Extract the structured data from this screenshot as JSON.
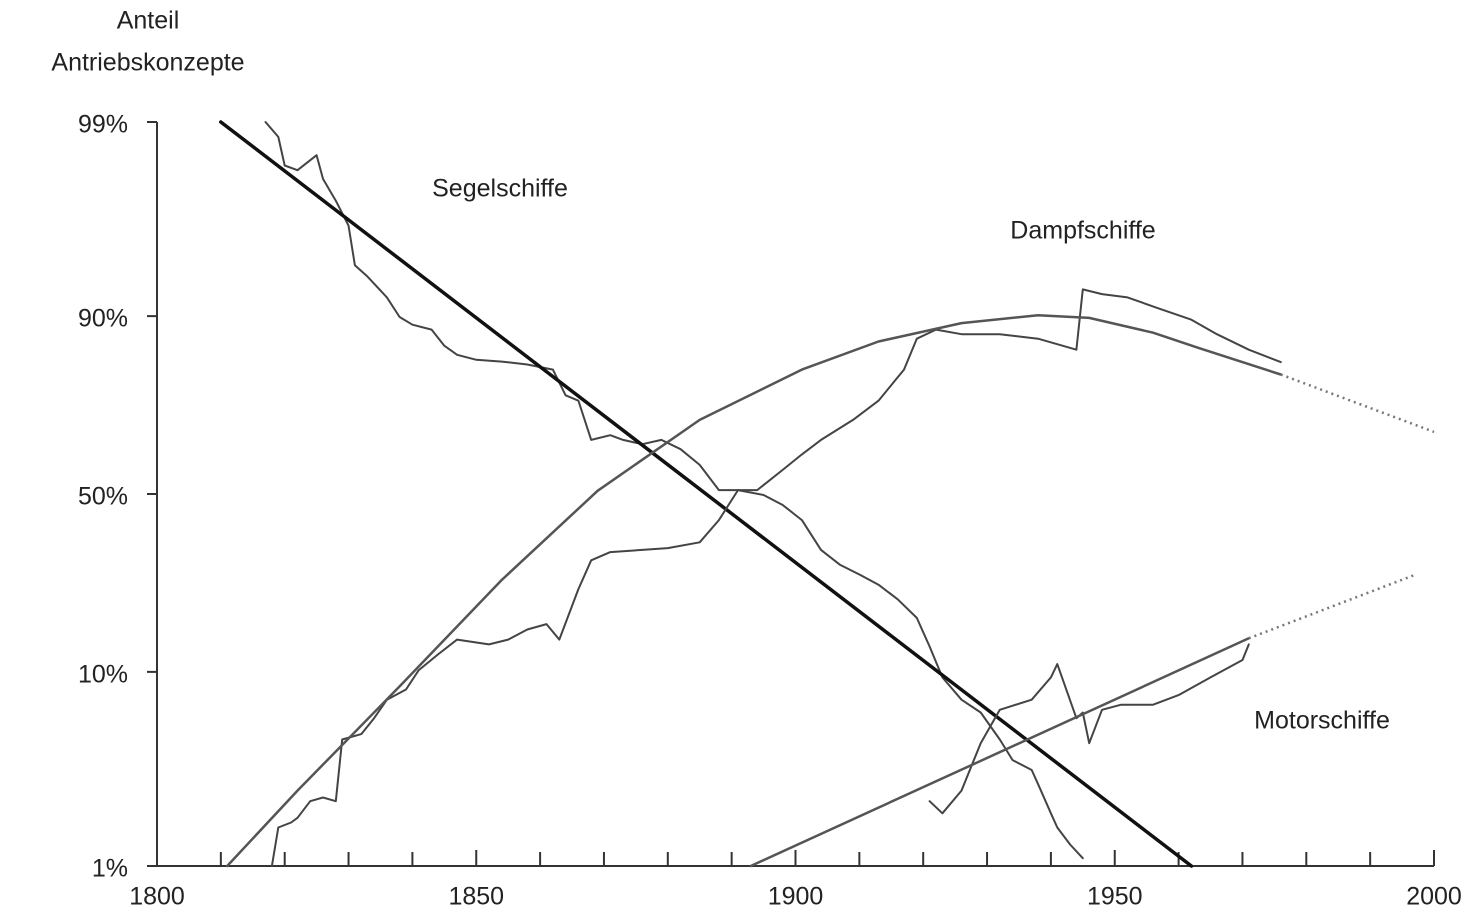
{
  "chart_data": {
    "type": "line",
    "yscale": "logit",
    "ylabel": [
      "Anteil",
      "Antriebskonzepte"
    ],
    "xlim": [
      1800,
      2000
    ],
    "xticks": [
      1800,
      1850,
      1900,
      1950,
      2000
    ],
    "xminor_ticks": [
      1810,
      1820,
      1830,
      1840,
      1860,
      1870,
      1880,
      1890,
      1910,
      1920,
      1930,
      1940,
      1960,
      1970,
      1980,
      1990
    ],
    "ylim": [
      1,
      99
    ],
    "yticks": [
      {
        "value": 1,
        "label": "1%"
      },
      {
        "value": 10,
        "label": "10%"
      },
      {
        "value": 50,
        "label": "50%"
      },
      {
        "value": 90,
        "label": "90%"
      },
      {
        "value": 99,
        "label": "99%"
      }
    ],
    "grid": false,
    "series": [
      {
        "name": "Segelschiffe",
        "color": "#444444",
        "style": "solid",
        "width": 2,
        "x": [
          1817,
          1819,
          1820,
          1822,
          1825,
          1826,
          1828,
          1830,
          1831,
          1833,
          1836,
          1838,
          1840,
          1843,
          1845,
          1847,
          1850,
          1854,
          1858,
          1862,
          1864,
          1866,
          1868,
          1871,
          1873,
          1876,
          1879,
          1882,
          1885,
          1888,
          1891,
          1895,
          1898,
          1901,
          1904,
          1907,
          1910,
          1913,
          1916,
          1919,
          1921,
          1923,
          1926,
          1929,
          1932,
          1934,
          1937,
          1938,
          1940,
          1941,
          1943,
          1945
        ],
        "values": [
          99,
          98.8,
          98.3,
          98.2,
          98.5,
          98,
          97.4,
          96.5,
          94.4,
          93.6,
          91.9,
          89.9,
          89,
          88.4,
          86.2,
          84.8,
          84,
          83.7,
          83.2,
          82.3,
          77.2,
          76,
          66.1,
          67.4,
          66.1,
          64.9,
          66.1,
          63.5,
          58.9,
          51.2,
          51.2,
          49.7,
          46.6,
          42,
          33.4,
          29.4,
          27,
          24.6,
          21.4,
          17.8,
          13.2,
          9.4,
          7.3,
          6.3,
          4.6,
          3.6,
          3.2,
          2.7,
          1.9,
          1.6,
          1.3,
          1.1
        ]
      },
      {
        "color": "#111111",
        "style": "solid",
        "width": 3.5,
        "x": [
          1810,
          1962
        ],
        "values": [
          99,
          1
        ]
      },
      {
        "name": "Dampfschiffe",
        "color": "#444444",
        "style": "solid",
        "width": 2,
        "x": [
          1818,
          1819,
          1821,
          1822,
          1824,
          1826,
          1828,
          1829,
          1832,
          1834,
          1836,
          1839,
          1841,
          1844,
          1847,
          1852,
          1855,
          1858,
          1861,
          1863,
          1866,
          1868,
          1871,
          1876,
          1880,
          1885,
          1888,
          1891,
          1894,
          1898,
          1901,
          1904,
          1909,
          1913,
          1917,
          1919,
          1922,
          1926,
          1932,
          1938,
          1944,
          1945,
          1948,
          1952,
          1957,
          1962,
          1966,
          1971,
          1976
        ],
        "values": [
          1,
          1.6,
          1.7,
          1.8,
          2.2,
          2.3,
          2.2,
          4.6,
          4.9,
          5.9,
          7.3,
          8.2,
          10.2,
          12.1,
          14.2,
          13.5,
          14.2,
          15.8,
          16.7,
          14.2,
          23.6,
          30.6,
          32.8,
          33.4,
          33.9,
          35.5,
          42,
          51.2,
          51.2,
          57.4,
          62,
          66.1,
          71.4,
          76,
          82.3,
          87.2,
          88.4,
          87.8,
          87.8,
          87.2,
          85.6,
          92.6,
          92.2,
          91.9,
          90.8,
          89.6,
          87.8,
          85.6,
          83.6
        ]
      },
      {
        "color": "#555555",
        "style": "solid",
        "width": 2.5,
        "x": [
          1811,
          1822,
          1838,
          1854,
          1869,
          1885,
          1901,
          1913,
          1926,
          1938,
          1946,
          1956,
          1963,
          1976
        ],
        "values": [
          1,
          2.5,
          8.5,
          25.7,
          51,
          71.4,
          82.3,
          86.8,
          89.2,
          90.1,
          89.8,
          88,
          85.9,
          81.4
        ]
      },
      {
        "color": "#777777",
        "style": "dotted",
        "width": 2.5,
        "x": [
          1976,
          2000
        ],
        "values": [
          81.4,
          68.3
        ]
      },
      {
        "name": "Motorschiffe",
        "color": "#444444",
        "style": "solid",
        "width": 2,
        "x": [
          1921,
          1923,
          1926,
          1929,
          1932,
          1937,
          1940,
          1941,
          1944,
          1945,
          1946,
          1948,
          1951,
          1956,
          1960,
          1965,
          1970,
          1971
        ],
        "values": [
          2.2,
          1.9,
          2.5,
          4.4,
          6.5,
          7.3,
          9.4,
          10.9,
          5.9,
          6.3,
          4.4,
          6.5,
          6.9,
          6.9,
          7.7,
          9.4,
          11.4,
          13.5
        ]
      },
      {
        "color": "#555555",
        "style": "solid",
        "width": 2.5,
        "x": [
          1893,
          1971
        ],
        "values": [
          1,
          14.4
        ]
      },
      {
        "color": "#777777",
        "style": "dotted",
        "width": 2.5,
        "x": [
          1971,
          1997
        ],
        "values": [
          14.4,
          26.9
        ]
      }
    ]
  }
}
